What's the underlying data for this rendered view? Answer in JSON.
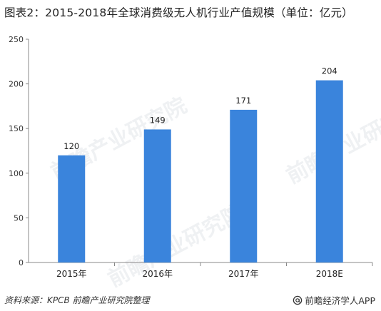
{
  "title": "图表2：2015-2018年全球消费级无人机行业产值规模（单位：亿元）",
  "footer": {
    "source": "资料来源：KPCB 前瞻产业研究院整理",
    "brand": "前瞻经济学人APP"
  },
  "watermark": "前瞻产业研究院",
  "chart_data": {
    "type": "bar",
    "title": "图表2：2015-2018年全球消费级无人机行业产值规模（单位：亿元）",
    "categories": [
      "2015年",
      "2016年",
      "2017年",
      "2018E"
    ],
    "values": [
      120,
      149,
      171,
      204
    ],
    "value_labels": [
      "120",
      "149",
      "171",
      "204"
    ],
    "xlabel": "",
    "ylabel": "",
    "ylim": [
      0,
      250
    ],
    "yticks": [
      0,
      50,
      100,
      150,
      200,
      250
    ],
    "grid": false,
    "legend": "none",
    "bar_color": "#3a84dc"
  }
}
